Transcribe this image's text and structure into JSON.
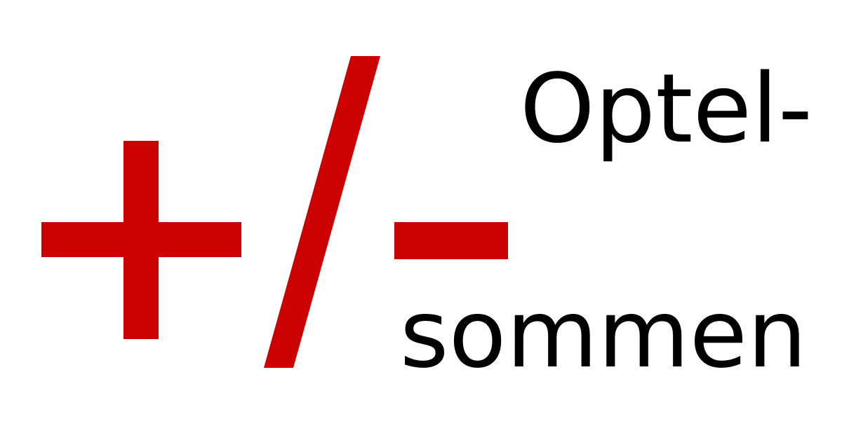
{
  "logo": {
    "symbol": "+/-",
    "symbol_color": "#cc0000",
    "text_color": "#000000",
    "background_color": "#ffffff",
    "line_1": "Optel-",
    "line_2": "sommen"
  }
}
